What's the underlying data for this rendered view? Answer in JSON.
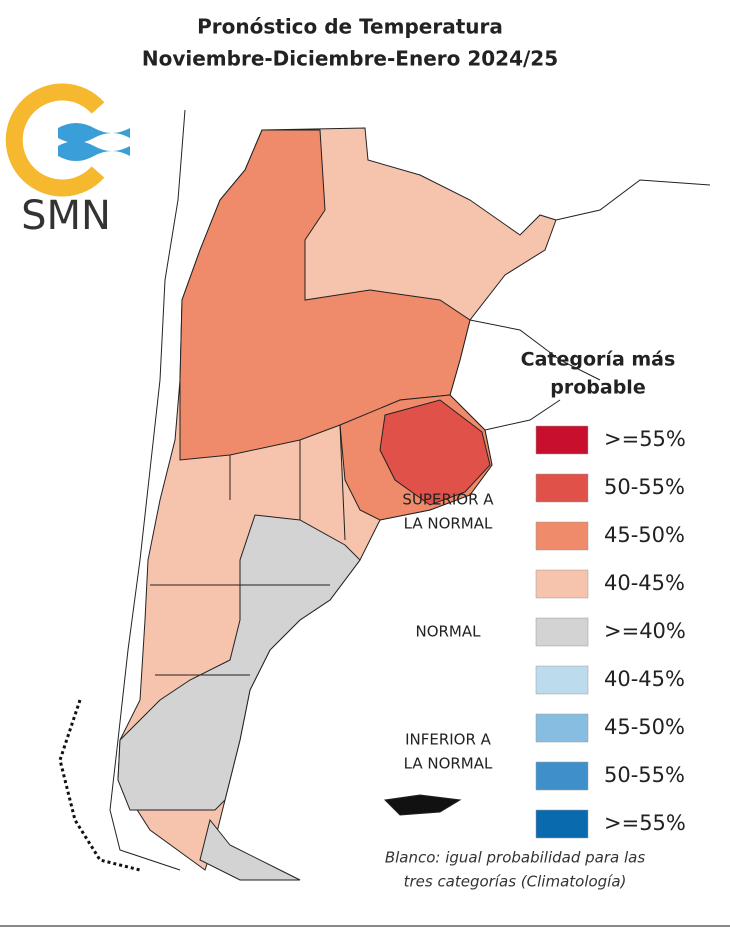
{
  "header": {
    "title": [
      "Pronóstico de Temperatura",
      "Noviembre-Diciembre-Enero 2024/25"
    ]
  },
  "logo": {
    "text": "SMN"
  },
  "legend": {
    "title": [
      "Categoría más",
      "probable"
    ],
    "groups": [
      {
        "label": [
          "SUPERIOR A",
          "LA NORMAL"
        ],
        "items": [
          {
            "color": "#c8102e",
            "label": ">=55%"
          },
          {
            "color": "#e0514a",
            "label": "50-55%"
          },
          {
            "color": "#ef8a6a",
            "label": "45-50%"
          },
          {
            "color": "#f6c3ad",
            "label": "40-45%"
          }
        ]
      },
      {
        "label": [
          "NORMAL"
        ],
        "items": [
          {
            "color": "#d3d3d3",
            "label": ">=40%"
          }
        ]
      },
      {
        "label": [
          "INFERIOR A",
          "LA NORMAL"
        ],
        "items": [
          {
            "color": "#bcdcee",
            "label": "40-45%"
          },
          {
            "color": "#86bde0",
            "label": "45-50%"
          },
          {
            "color": "#3f8fcb",
            "label": "50-55%"
          },
          {
            "color": "#0a6aae",
            "label": ">=55%"
          }
        ]
      }
    ]
  },
  "note": [
    "Blanco: igual probabilidad para las",
    "tres categorías (Climatología)"
  ]
}
